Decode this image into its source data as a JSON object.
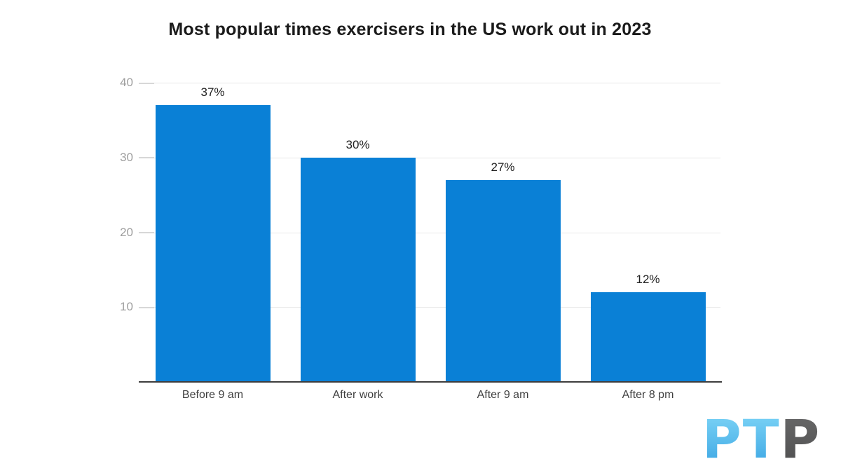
{
  "chart_data": {
    "type": "bar",
    "title": "Most popular times exercisers in the US work out in 2023",
    "categories": [
      "Before 9 am",
      "After work",
      "After 9 am",
      "After 8 pm"
    ],
    "values": [
      37,
      30,
      27,
      12
    ],
    "data_labels": [
      "37%",
      "30%",
      "27%",
      "12%"
    ],
    "xlabel": "",
    "ylabel": "",
    "y_ticks": [
      10,
      20,
      30,
      40
    ],
    "ylim": [
      0,
      40
    ],
    "grid": "horizontal gridlines on",
    "legend": "none",
    "bar_color": "#0a80d6",
    "gridline_color": "#e8e8e8",
    "axis_line_color": "#3d3d3d",
    "y_tick_label_color": "#9e9e9e",
    "value_label_color": "#212121",
    "category_label_color": "#3f3f3f"
  },
  "logo": {
    "text_primary": "PT",
    "text_secondary": "P",
    "primary_color_top": "#82d8f8",
    "primary_color_bottom": "#38a3e2",
    "secondary_color_top": "#6b6b6b",
    "secondary_color_bottom": "#4d4d4e"
  }
}
